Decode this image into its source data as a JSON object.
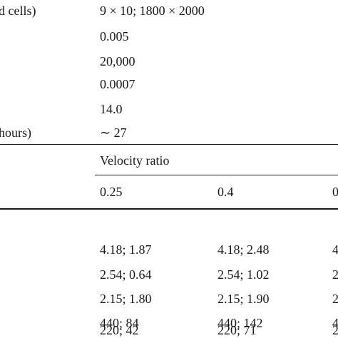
{
  "top_rows": [
    {
      "label": "d cells)",
      "value": "9 × 10;  1800 × 2000"
    },
    {
      "label": "",
      "value": "0.005"
    },
    {
      "label": "",
      "value": "20,000"
    },
    {
      "label": "",
      "value": "0.0007"
    },
    {
      "label": "",
      "value": "14.0"
    },
    {
      "label": "hours)",
      "value": "∼ 27"
    }
  ],
  "header": {
    "group_label": "Velocity ratio",
    "columns": [
      "0.25",
      "0.4",
      "0"
    ]
  },
  "data_rows": [
    [
      "4.18; 1.87",
      "4.18; 2.48",
      "4"
    ],
    [
      "2.54; 0.64",
      "2.54; 1.02",
      "2"
    ],
    [
      "2.15; 1.80",
      "2.15; 1.90",
      "2"
    ],
    [
      "440; 84",
      "440; 142",
      "4"
    ],
    [
      "220; 42",
      "220; 71",
      "2"
    ]
  ]
}
